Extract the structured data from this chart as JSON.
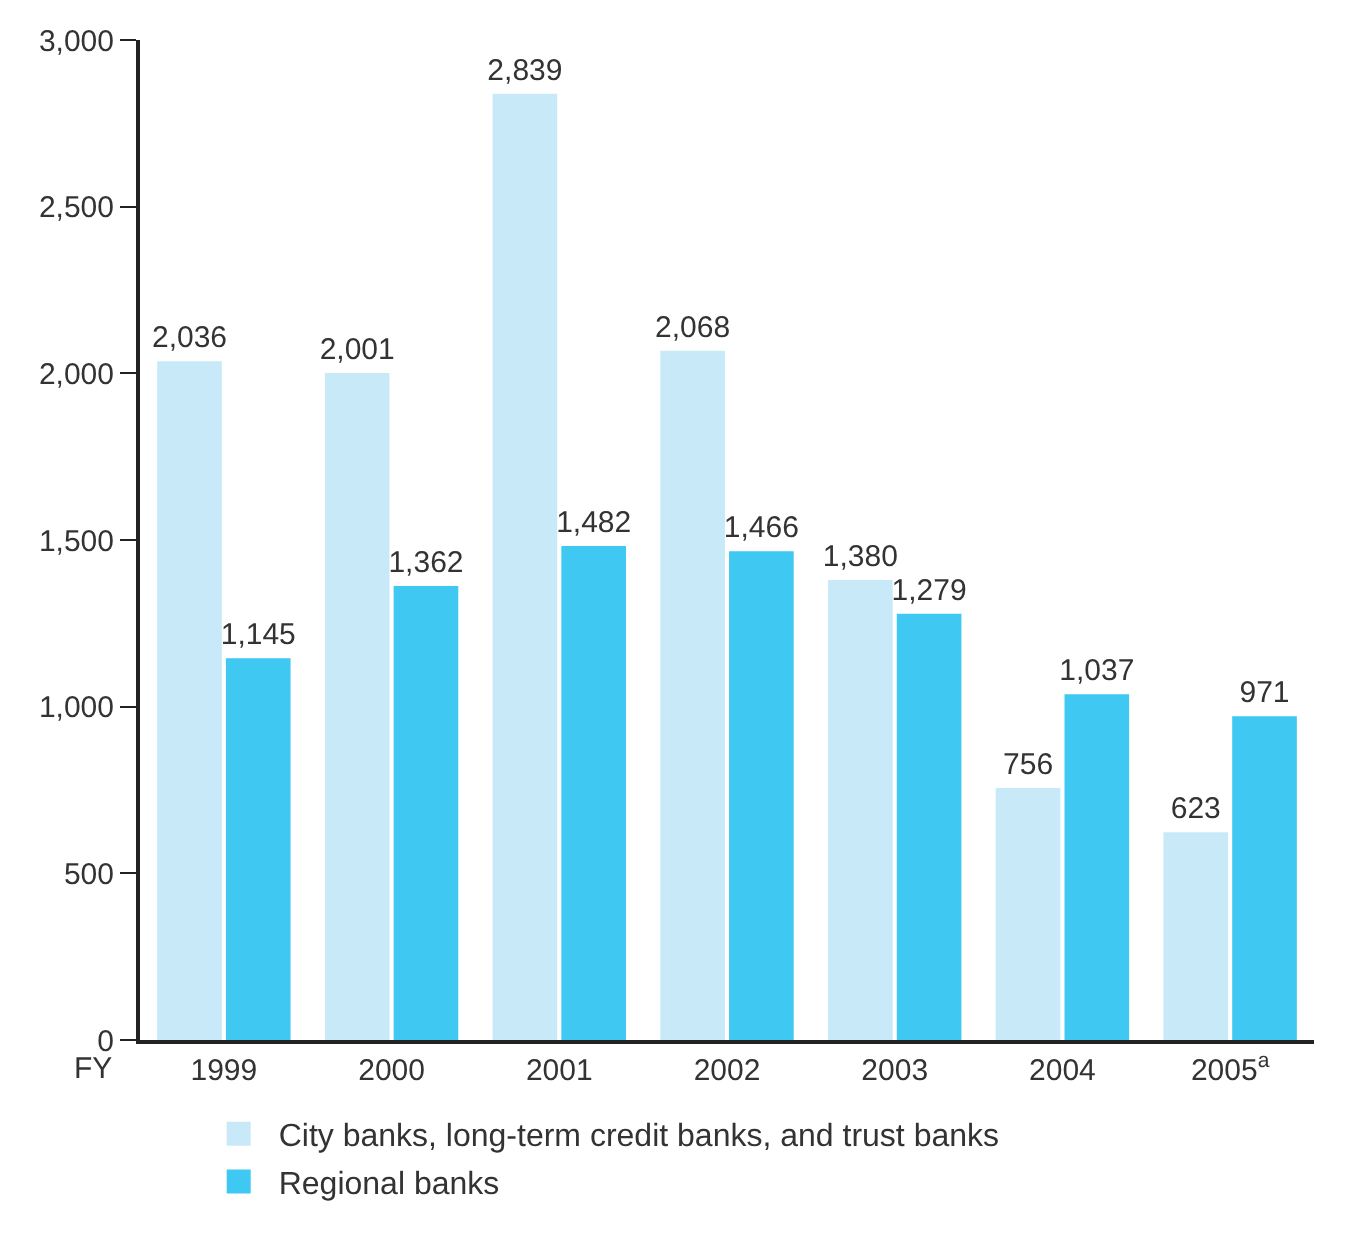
{
  "chart_data": {
    "type": "bar",
    "xlabel": "FY",
    "categories": [
      "1999",
      "2000",
      "2001",
      "2002",
      "2003",
      "2004",
      "2005$^{a}$"
    ],
    "series": [
      {
        "name": "City banks, long-term credit banks, and trust banks",
        "color": "#c8eaf8",
        "values": [
          2036,
          2001,
          2839,
          2068,
          1380,
          756,
          623
        ],
        "value_labels": [
          "2,036",
          "2,001",
          "2,839",
          "2,068",
          "1,380",
          "756",
          "623"
        ]
      },
      {
        "name": "Regional banks",
        "color": "#3ec8f2",
        "values": [
          1145,
          1362,
          1482,
          1466,
          1279,
          1037,
          971
        ],
        "value_labels": [
          "1,145",
          "1,362",
          "1,482",
          "1,466",
          "1,279",
          "1,037",
          "971"
        ]
      }
    ],
    "ylim": [
      0,
      3000
    ],
    "yticks": [
      0,
      {
        "value": 500,
        "label": "500"
      },
      {
        "value": 1000,
        "label": "1,000"
      },
      {
        "value": 1500,
        "label": "1,500"
      },
      {
        "value": 2000,
        "label": "2,000"
      },
      {
        "value": 2500,
        "label": "2,500"
      },
      {
        "value": 3000,
        "label": "3,000"
      }
    ],
    "legend": "bottom"
  }
}
